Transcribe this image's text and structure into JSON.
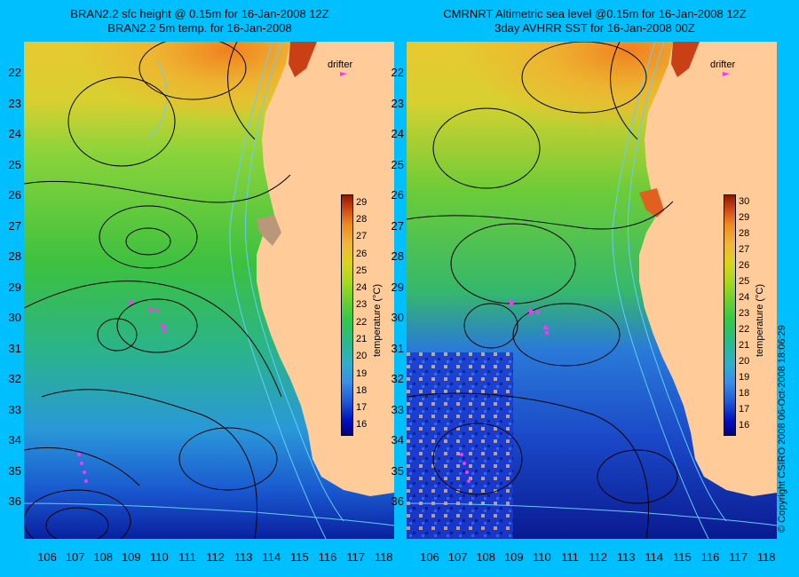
{
  "left": {
    "title_line1": "BRAN2.2 sfc height @ 0.15m for 16-Jan-2008 12Z",
    "title_line2": "BRAN2.2 5m temp. for 16-Jan-2008",
    "drifter_label": "drifter"
  },
  "right": {
    "title_line1": "CMRNRT Altimetric sea level  @0.15m  for 16-Jan-2008 12Z",
    "title_line2": "3day AVHRR SST for 16-Jan-2008 00Z",
    "drifter_label": "drifter"
  },
  "lat_ticks": [
    "22",
    "23",
    "24",
    "25",
    "26",
    "27",
    "28",
    "29",
    "30",
    "31",
    "32",
    "33",
    "34",
    "35",
    "36"
  ],
  "lon_ticks": [
    "106",
    "107",
    "108",
    "109",
    "110",
    "111",
    "112",
    "113",
    "114",
    "115",
    "116",
    "117",
    "118"
  ],
  "colorbar_left": {
    "label": "temperature (°C)",
    "ticks": [
      "29",
      "28",
      "27",
      "26",
      "25",
      "24",
      "23",
      "22",
      "21",
      "20",
      "19",
      "18",
      "17",
      "16"
    ]
  },
  "colorbar_right": {
    "label": "temperature (°C)",
    "ticks": [
      "30",
      "29",
      "28",
      "27",
      "26",
      "25",
      "24",
      "23",
      "22",
      "21",
      "20",
      "19",
      "18",
      "17",
      "16"
    ]
  },
  "copyright": "© Copyright CSIRO 2008   06-Oct-2008 18:06:29",
  "colors": {
    "background": "#00bfff",
    "land": "#ffcc99",
    "drifter": "#ff33ff",
    "contour": "#000000",
    "bathymetry": "#66ccff"
  }
}
